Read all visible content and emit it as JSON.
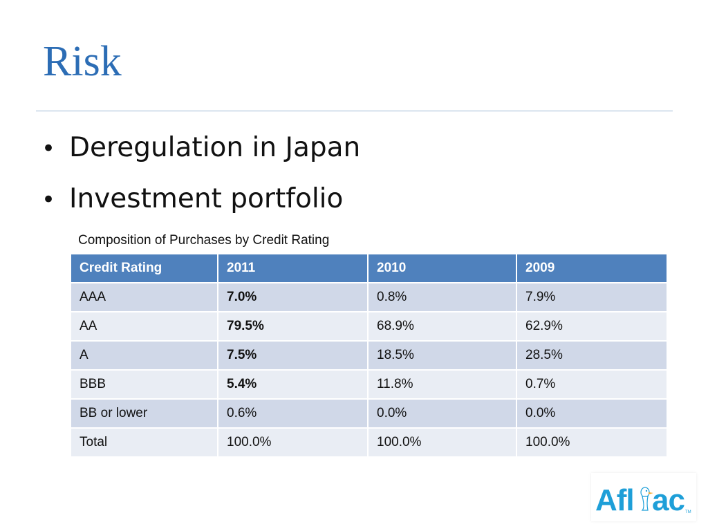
{
  "slide": {
    "title": "Risk",
    "bullets": [
      "Deregulation in Japan",
      "Investment portfolio"
    ]
  },
  "table": {
    "caption": "Composition of Purchases by Credit Rating",
    "headers": [
      "Credit Rating",
      "2011",
      "2010",
      "2009"
    ],
    "rows": [
      [
        "AAA",
        "7.0%",
        "0.8%",
        "7.9%"
      ],
      [
        "AA",
        "79.5%",
        "68.9%",
        "62.9%"
      ],
      [
        "A",
        "7.5%",
        "18.5%",
        "28.5%"
      ],
      [
        "BBB",
        "5.4%",
        "11.8%",
        "0.7%"
      ],
      [
        "BB or lower",
        "0.6%",
        "0.0%",
        "0.0%"
      ],
      [
        "Total",
        "100.0%",
        "100.0%",
        "100.0%"
      ]
    ]
  },
  "logo": {
    "text": "Aflac",
    "trademark": "TM",
    "icon": "aflac-duck-logo",
    "color": "#1E9FD8"
  },
  "colors": {
    "title": "#2C6DB5",
    "header_fill": "#4F81BD",
    "row_fill_odd": "#D0D8E8",
    "row_fill_even": "#E9EDF4"
  }
}
